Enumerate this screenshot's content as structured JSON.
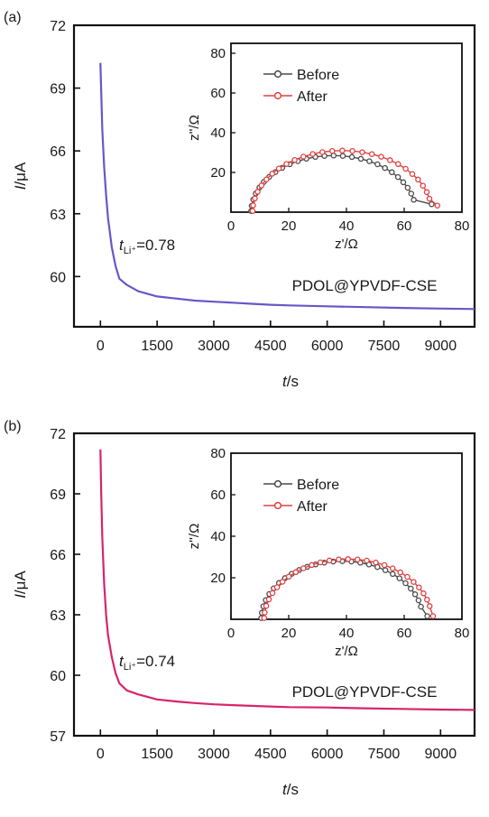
{
  "chart_data": [
    {
      "type": "line",
      "panel_label": "(a)",
      "xlabel": {
        "var": "t",
        "unit": "/s"
      },
      "ylabel": {
        "var": "I",
        "unit": "/μA"
      },
      "xlim": [
        -700,
        9900
      ],
      "ylim": [
        57.6,
        72
      ],
      "x_ticks": [
        0,
        1500,
        3000,
        4500,
        6000,
        7500,
        9000
      ],
      "y_ticks": [
        60,
        63,
        66,
        69,
        72
      ],
      "series": [
        {
          "color": "#6a56c8",
          "x": [
            0,
            20,
            50,
            100,
            150,
            200,
            300,
            400,
            500,
            700,
            1000,
            1500,
            2000,
            2500,
            3000,
            3500,
            4000,
            4500,
            5000,
            6000,
            7000,
            8000,
            9000,
            9900
          ],
          "y": [
            70.2,
            68.8,
            67.0,
            65.2,
            63.9,
            62.8,
            61.4,
            60.5,
            59.9,
            59.6,
            59.3,
            59.05,
            58.95,
            58.85,
            58.8,
            58.75,
            58.7,
            58.65,
            58.62,
            58.58,
            58.54,
            58.5,
            58.47,
            58.45
          ]
        }
      ],
      "annotations": {
        "tli_sub": "Li⁺",
        "tli_value": "=0.78",
        "material": "PDOL@YPVDF-CSE"
      },
      "inset": {
        "type": "line",
        "xlabel": "z'/Ω",
        "ylabel": "z''/Ω",
        "xlim": [
          0,
          80
        ],
        "ylim": [
          0,
          85
        ],
        "x_ticks": [
          0,
          20,
          40,
          60,
          80
        ],
        "y_ticks": [
          20,
          40,
          60,
          80
        ],
        "legend_position": "top-left",
        "series": [
          {
            "name": "Before",
            "color": "#4a4a4a",
            "center": 35.5,
            "radius": 28.5,
            "tail_end": [
              69.5,
              4.0
            ]
          },
          {
            "name": "After",
            "color": "#e04040",
            "center": 38.5,
            "radius": 31.0,
            "tail_end": [
              71.5,
              3.3
            ]
          }
        ]
      }
    },
    {
      "type": "line",
      "panel_label": "(b)",
      "xlabel": {
        "var": "t",
        "unit": "/s"
      },
      "ylabel": {
        "var": "I",
        "unit": "/μA"
      },
      "xlim": [
        -700,
        9900
      ],
      "ylim": [
        57,
        72
      ],
      "x_ticks": [
        0,
        1500,
        3000,
        4500,
        6000,
        7500,
        9000
      ],
      "y_ticks": [
        57,
        60,
        63,
        66,
        69,
        72
      ],
      "series": [
        {
          "color": "#d8246a",
          "x": [
            0,
            20,
            50,
            100,
            150,
            200,
            300,
            400,
            500,
            700,
            1000,
            1500,
            2000,
            2500,
            3000,
            3500,
            4000,
            4500,
            5000,
            6000,
            7000,
            8000,
            9000,
            9900
          ],
          "y": [
            71.2,
            69.0,
            66.8,
            64.5,
            63.0,
            62.0,
            60.9,
            60.1,
            59.6,
            59.25,
            59.05,
            58.8,
            58.7,
            58.62,
            58.56,
            58.52,
            58.48,
            58.45,
            58.42,
            58.4,
            58.36,
            58.33,
            58.3,
            58.28
          ]
        }
      ],
      "annotations": {
        "tli_sub": "Li⁺",
        "tli_value": "=0.74",
        "material": "PDOL@YPVDF-CSE"
      },
      "inset": {
        "type": "line",
        "xlabel": "z'/Ω",
        "ylabel": "z''/Ω",
        "xlim": [
          0,
          80
        ],
        "ylim": [
          0,
          80
        ],
        "x_ticks": [
          0,
          20,
          40,
          60,
          80
        ],
        "y_ticks": [
          20,
          40,
          60,
          80
        ],
        "legend_position": "top-left",
        "series": [
          {
            "name": "Before",
            "color": "#4a4a4a",
            "center": 38.5,
            "radius": 28.0,
            "tail_end": [
              68.0,
              1.5
            ]
          },
          {
            "name": "After",
            "color": "#e04040",
            "center": 40.5,
            "radius": 29.0,
            "tail_end": [
              70.0,
              1.5
            ]
          }
        ]
      }
    }
  ]
}
